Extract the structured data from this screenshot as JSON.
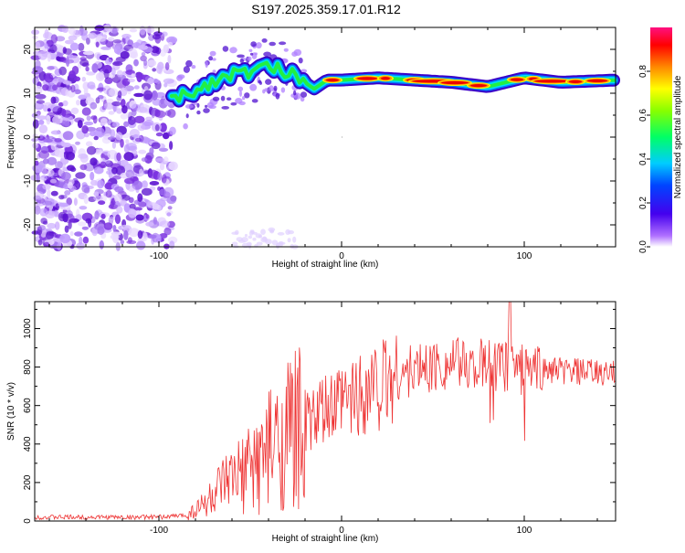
{
  "title": "S197.2025.359.17.01.R12",
  "chart_data": [
    {
      "type": "heatmap",
      "title": "S197.2025.359.17.01.R12",
      "xlabel": "Height of straight line (km)",
      "ylabel": "Frequency (Hz)",
      "xlim": [
        -168,
        150
      ],
      "ylim": [
        -25,
        25
      ],
      "xticks": [
        "-100",
        "0",
        "100"
      ],
      "yticks": [
        "20",
        "10",
        "0",
        "-10",
        "-20"
      ],
      "colorbar": {
        "label": "Normalized spectral amplitude",
        "ticks": [
          "0.0",
          "0.2",
          "0.4",
          "0.6",
          "0.8"
        ],
        "range": [
          0,
          1
        ]
      },
      "ridge_frequency_hz": [
        {
          "x": -92,
          "y": 8.5
        },
        {
          "x": -85,
          "y": 9.5
        },
        {
          "x": -78,
          "y": 11
        },
        {
          "x": -70,
          "y": 13
        },
        {
          "x": -60,
          "y": 14
        },
        {
          "x": -50,
          "y": 15
        },
        {
          "x": -40,
          "y": 16
        },
        {
          "x": -30,
          "y": 15
        },
        {
          "x": -22,
          "y": 13
        },
        {
          "x": -15,
          "y": 11
        },
        {
          "x": -8,
          "y": 13
        },
        {
          "x": 0,
          "y": 13
        },
        {
          "x": 20,
          "y": 13.5
        },
        {
          "x": 40,
          "y": 13
        },
        {
          "x": 60,
          "y": 12.5
        },
        {
          "x": 80,
          "y": 11.5
        },
        {
          "x": 100,
          "y": 13.5
        },
        {
          "x": 120,
          "y": 12.5
        },
        {
          "x": 150,
          "y": 13
        }
      ]
    },
    {
      "type": "line",
      "xlabel": "Height of straight line (km)",
      "ylabel": "SNR (10 * v/v)",
      "xlim": [
        -168,
        150
      ],
      "ylim": [
        0,
        1140
      ],
      "xticks": [
        "-100",
        "0",
        "100"
      ],
      "yticks": [
        "0",
        "200",
        "400",
        "600",
        "800",
        "1000"
      ],
      "series": [
        {
          "name": "SNR",
          "color": "#ee3333",
          "envelope": [
            {
              "x": -168,
              "y": 20
            },
            {
              "x": -100,
              "y": 20
            },
            {
              "x": -85,
              "y": 30
            },
            {
              "x": -75,
              "y": 90
            },
            {
              "x": -65,
              "y": 170
            },
            {
              "x": -55,
              "y": 230
            },
            {
              "x": -45,
              "y": 320
            },
            {
              "x": -35,
              "y": 400
            },
            {
              "x": -25,
              "y": 480
            },
            {
              "x": -15,
              "y": 530
            },
            {
              "x": -5,
              "y": 580
            },
            {
              "x": 5,
              "y": 640
            },
            {
              "x": 15,
              "y": 700
            },
            {
              "x": 25,
              "y": 730
            },
            {
              "x": 35,
              "y": 770
            },
            {
              "x": 45,
              "y": 800
            },
            {
              "x": 60,
              "y": 820
            },
            {
              "x": 75,
              "y": 810
            },
            {
              "x": 85,
              "y": 800
            },
            {
              "x": 95,
              "y": 790
            },
            {
              "x": 105,
              "y": 790
            },
            {
              "x": 120,
              "y": 780
            },
            {
              "x": 135,
              "y": 770
            },
            {
              "x": 150,
              "y": 760
            }
          ]
        }
      ]
    }
  ]
}
